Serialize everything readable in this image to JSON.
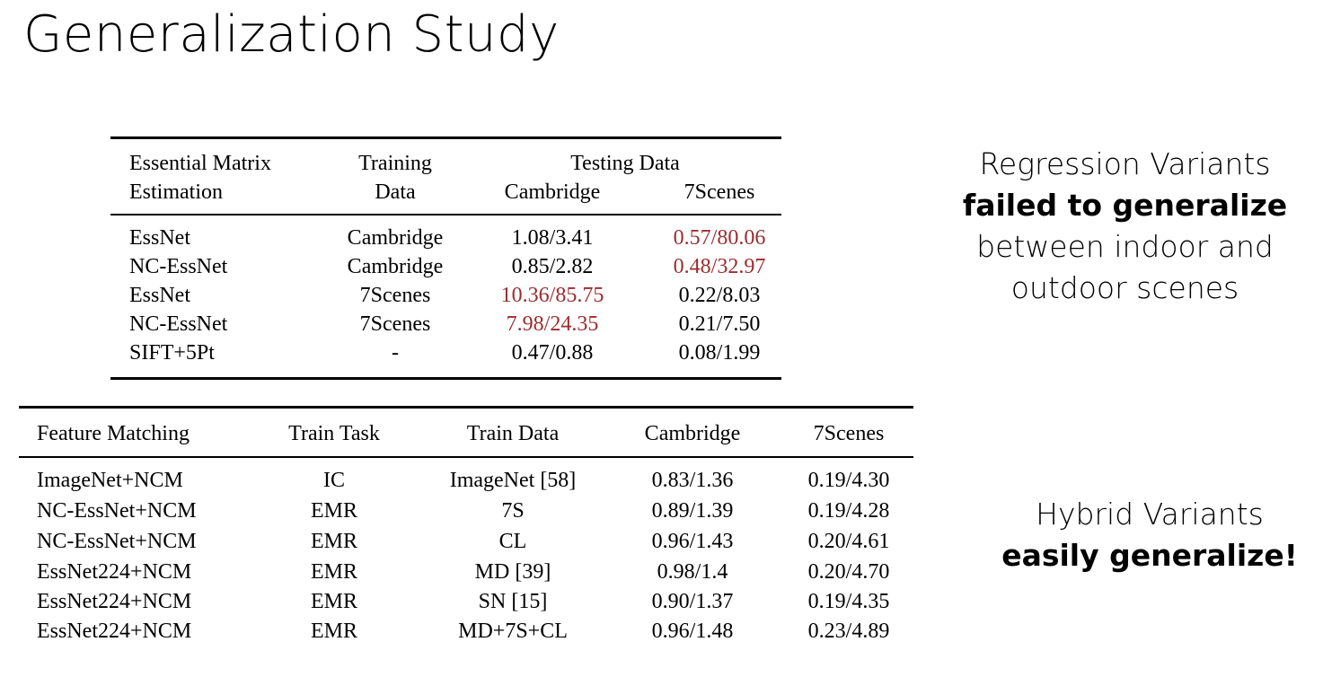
{
  "title": "Generalization Study",
  "essential_table": {
    "header": {
      "col1_line1": "Essential Matrix",
      "col1_line2": "Estimation",
      "col2_line1": "Training",
      "col2_line2": "Data",
      "testing_group": "Testing Data",
      "test_col1": "Cambridge",
      "test_col2": "7Scenes"
    },
    "rows": [
      {
        "method": "EssNet",
        "train": "Cambridge",
        "cambridge": "1.08/3.41",
        "scenes": "0.57/80.06"
      },
      {
        "method": "NC-EssNet",
        "train": "Cambridge",
        "cambridge": "0.85/2.82",
        "scenes": "0.48/32.97"
      },
      {
        "method": "EssNet",
        "train": "7Scenes",
        "cambridge": "10.36/85.75",
        "scenes": "0.22/8.03"
      },
      {
        "method": "NC-EssNet",
        "train": "7Scenes",
        "cambridge": "7.98/24.35",
        "scenes": "0.21/7.50"
      },
      {
        "method": "SIFT+5Pt",
        "train": "-",
        "cambridge": "0.47/0.88",
        "scenes": "0.08/1.99"
      }
    ],
    "highlight_color": "#9b2d30"
  },
  "matching_table": {
    "header": {
      "c1": "Feature Matching",
      "c2": "Train Task",
      "c3": "Train Data",
      "c4": "Cambridge",
      "c5": "7Scenes"
    },
    "rows": [
      {
        "method": "ImageNet+NCM",
        "task": "IC",
        "data": "ImageNet [58]",
        "cambridge": "0.83/1.36",
        "scenes": "0.19/4.30"
      },
      {
        "method": "NC-EssNet+NCM",
        "task": "EMR",
        "data": "7S",
        "cambridge": "0.89/1.39",
        "scenes": "0.19/4.28"
      },
      {
        "method": "NC-EssNet+NCM",
        "task": "EMR",
        "data": "CL",
        "cambridge": "0.96/1.43",
        "scenes": "0.20/4.61"
      },
      {
        "method": "EssNet224+NCM",
        "task": "EMR",
        "data": "MD [39]",
        "cambridge": "0.98/1.4",
        "scenes": "0.20/4.70"
      },
      {
        "method": "EssNet224+NCM",
        "task": "EMR",
        "data": "SN [15]",
        "cambridge": "0.90/1.37",
        "scenes": "0.19/4.35"
      },
      {
        "method": "EssNet224+NCM",
        "task": "EMR",
        "data": "MD+7S+CL",
        "cambridge": "0.96/1.48",
        "scenes": "0.23/4.89"
      }
    ]
  },
  "notes": {
    "regression_line1": "Regression Variants",
    "regression_bold": "failed to generalize",
    "regression_line3": "between indoor and",
    "regression_line4": "outdoor scenes",
    "hybrid_line1": "Hybrid Variants",
    "hybrid_bold": "easily generalize!"
  }
}
